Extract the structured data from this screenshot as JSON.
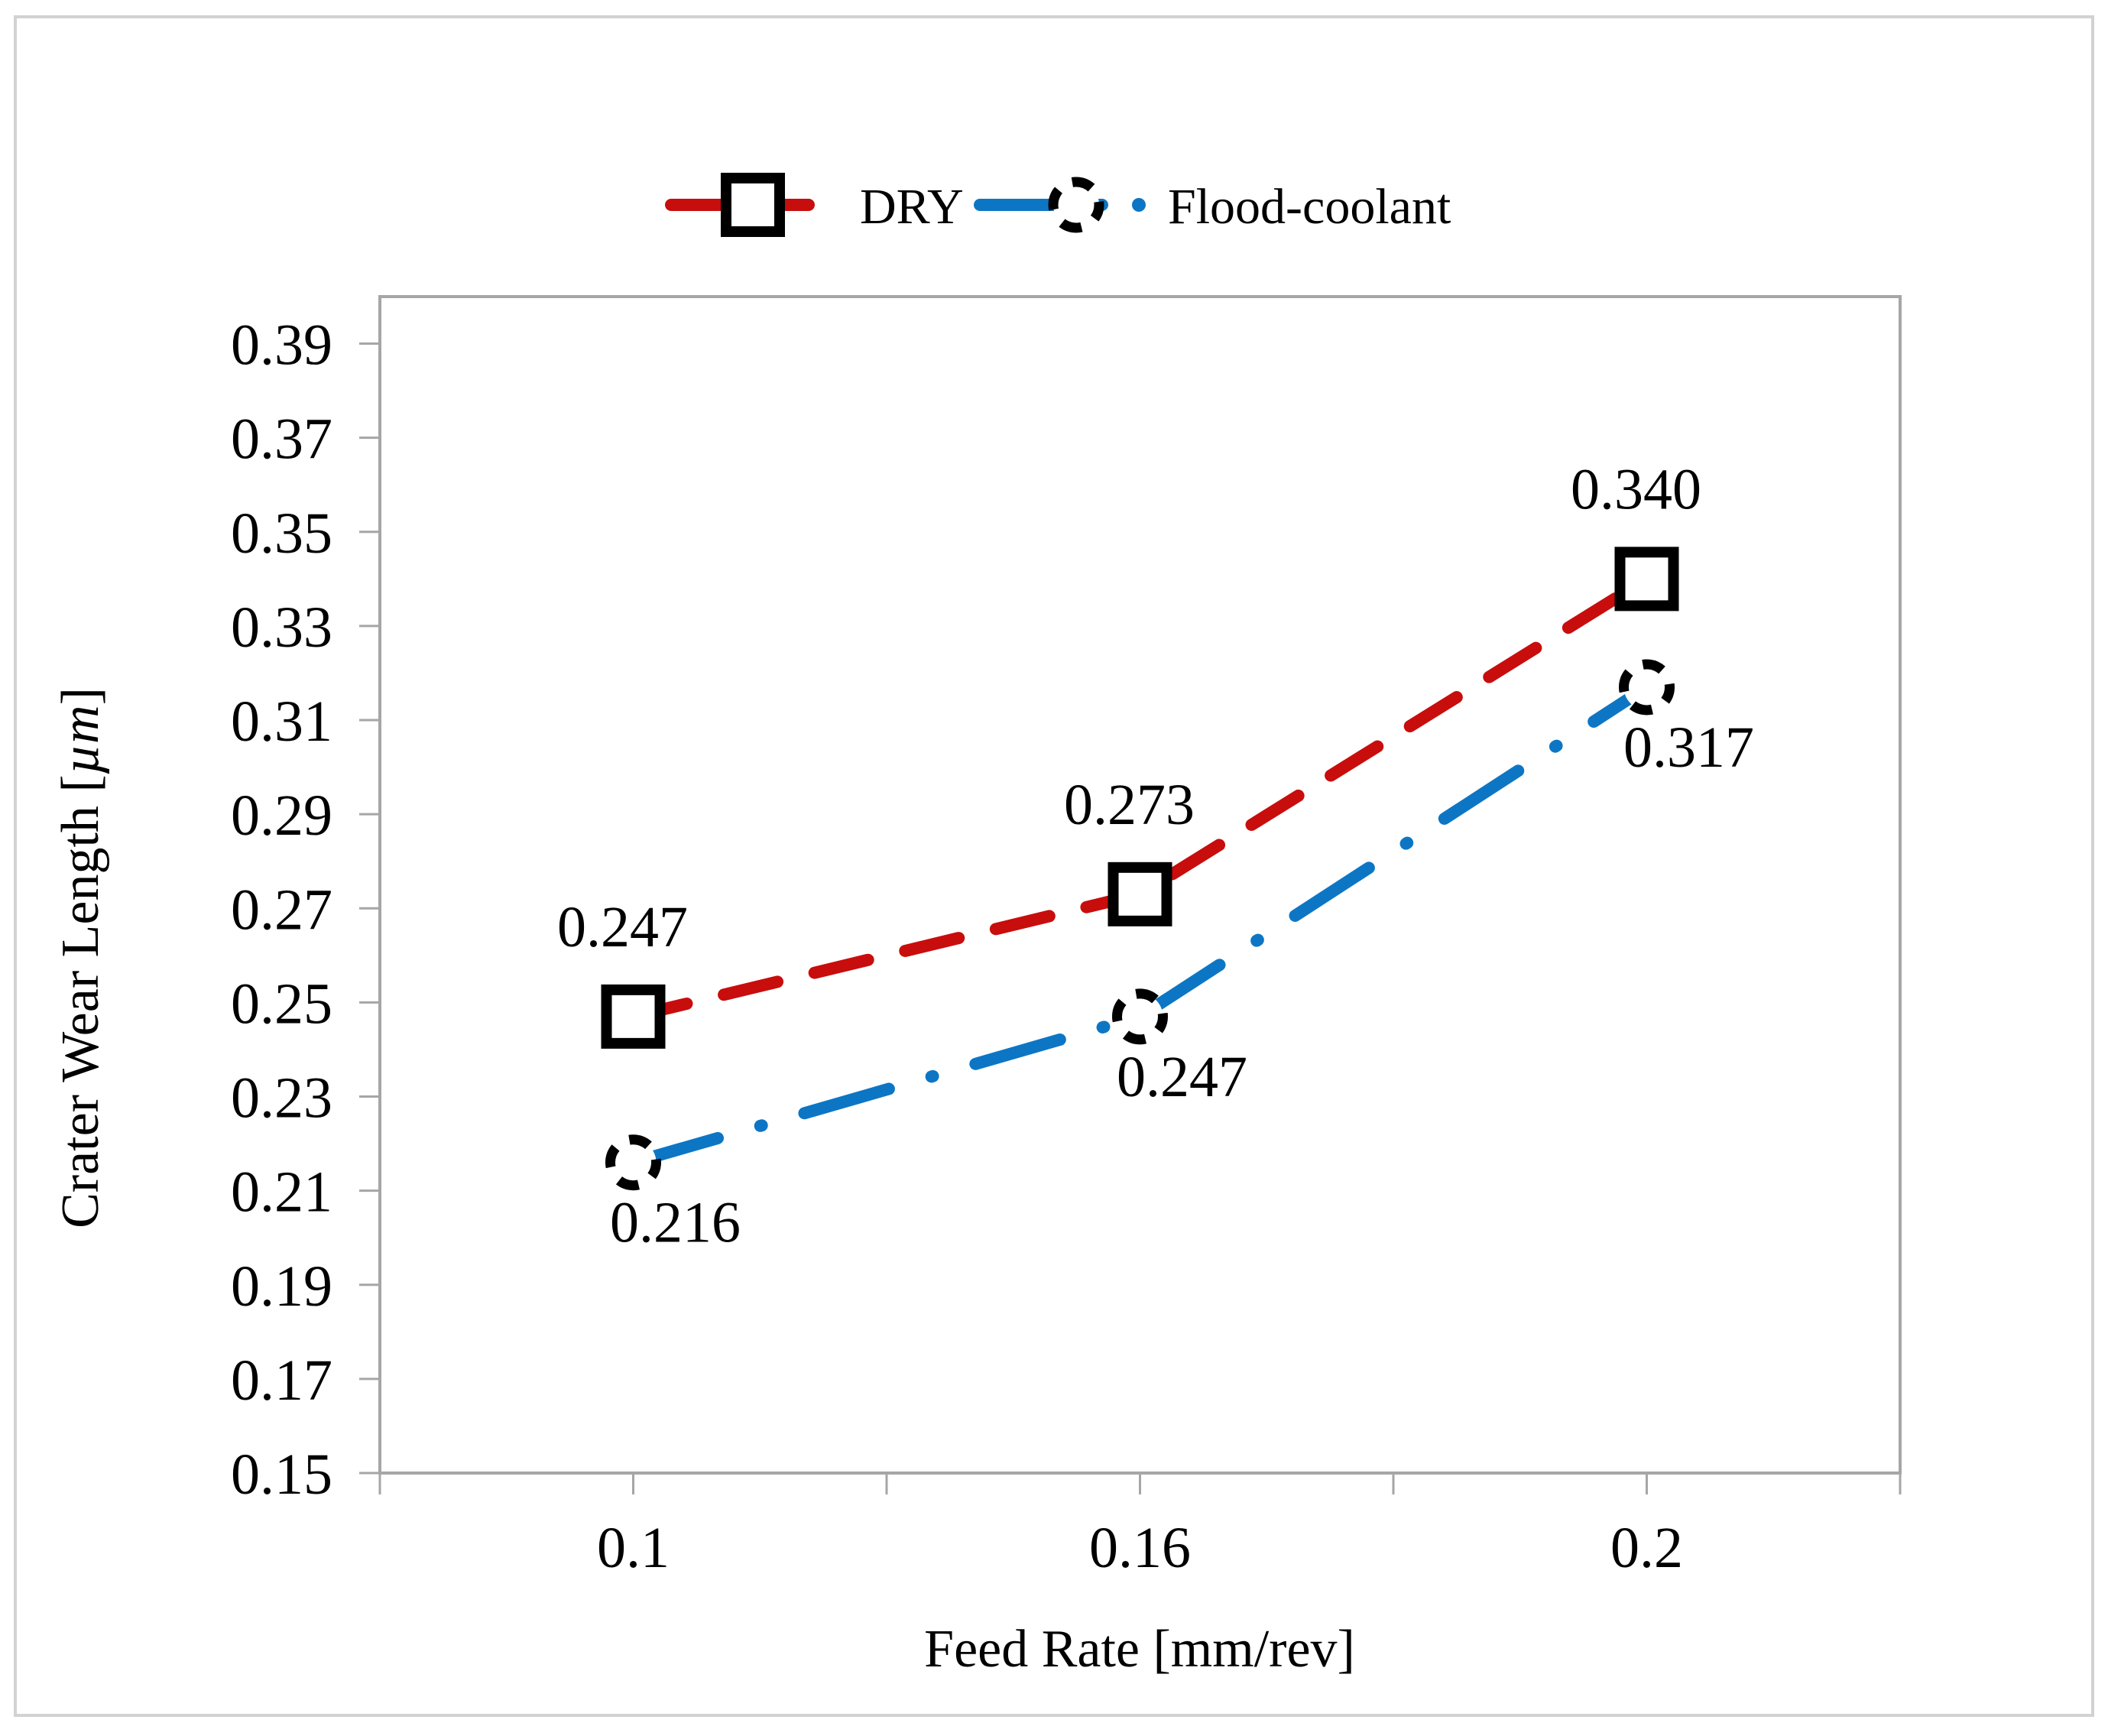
{
  "figure": {
    "background": "#ffffff",
    "outer_border_color": "#d2d2d2",
    "axis_color": "#a6a6a6",
    "text_color": "#000000",
    "marker_color": "#000000"
  },
  "legend": {
    "position": "top-center",
    "items": [
      {
        "label": "DRY"
      },
      {
        "label": "Flood-coolant"
      }
    ]
  },
  "chart_data": {
    "type": "line",
    "title": "",
    "xlabel": "Feed Rate [mm/rev]",
    "ylabel": "Crater Wear Length [µm]",
    "ylabel_prefix": "Crater Wear Length [",
    "ylabel_italic": "µm",
    "ylabel_suffix": "]",
    "x": [
      0.1,
      0.16,
      0.2
    ],
    "x_tick_labels": [
      "0.1",
      "0.16",
      "0.2"
    ],
    "y_ticks": [
      "0.15",
      "0.17",
      "0.19",
      "0.21",
      "0.23",
      "0.25",
      "0.27",
      "0.29",
      "0.31",
      "0.33",
      "0.35",
      "0.37",
      "0.39"
    ],
    "ylim": [
      0.15,
      0.4
    ],
    "grid": false,
    "legend_position": "top",
    "series": [
      {
        "name": "DRY",
        "values": [
          0.247,
          0.273,
          0.34
        ],
        "data_labels": [
          "0.247",
          "0.273",
          "0.340"
        ],
        "color": "#c80d0d",
        "marker": "square",
        "marker_color": "#000000",
        "line_style": "dashed",
        "label_position": "above"
      },
      {
        "name": "Flood-coolant",
        "values": [
          0.216,
          0.247,
          0.317
        ],
        "data_labels": [
          "0.216",
          "0.247",
          "0.317"
        ],
        "color": "#0d76c4",
        "marker": "dashed-circle",
        "marker_color": "#000000",
        "line_style": "dash-dot",
        "label_position": "below-right"
      }
    ]
  }
}
